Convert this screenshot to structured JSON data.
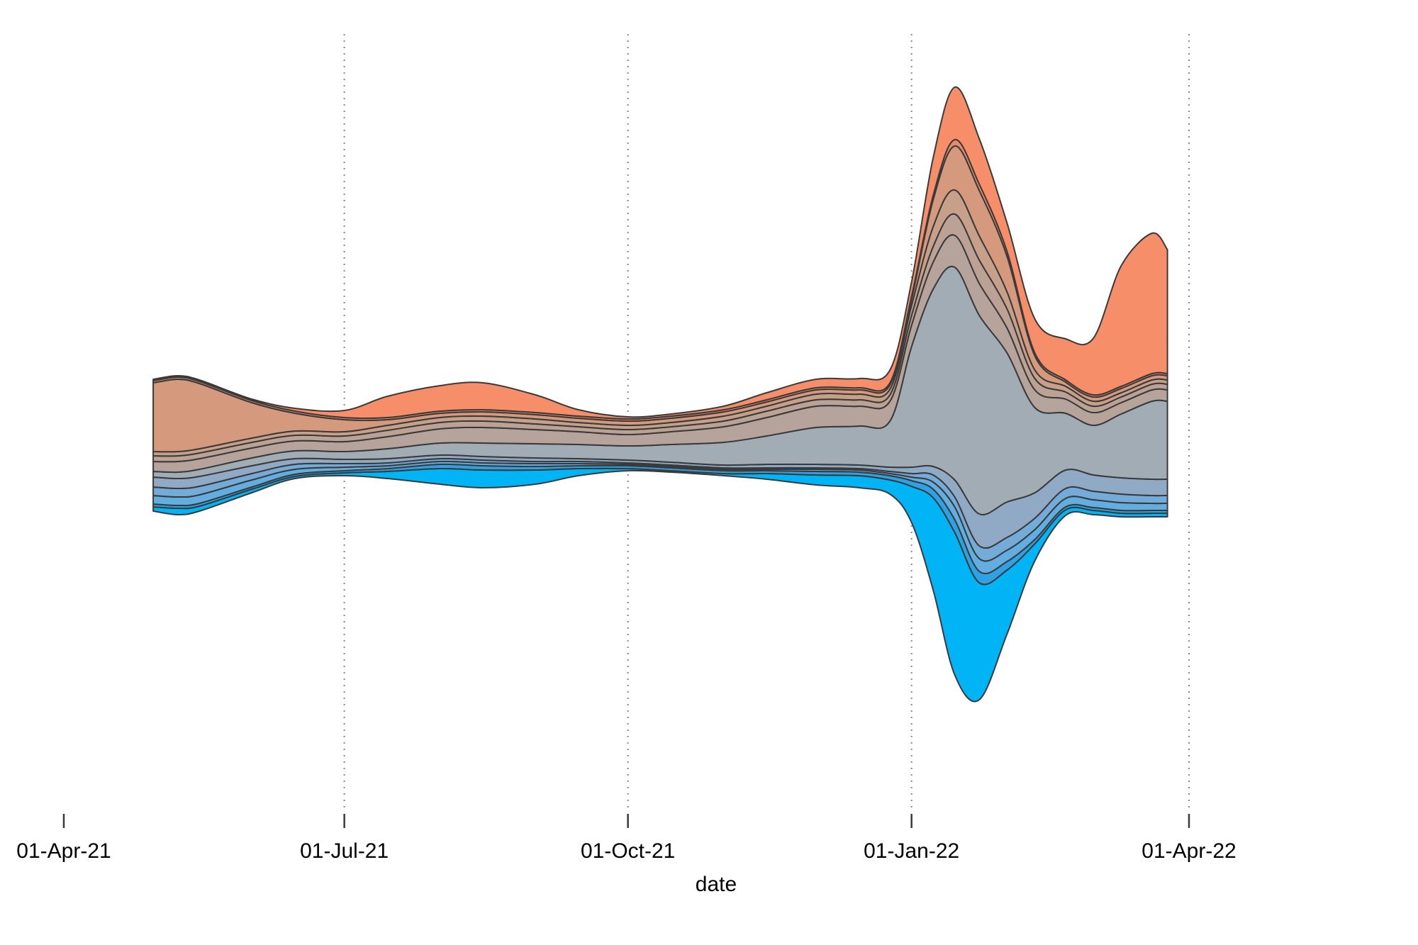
{
  "chart_data": {
    "type": "area",
    "subtype": "streamgraph",
    "title": "",
    "xlabel": "date",
    "ylabel": "",
    "x_ticks": [
      "01-Apr-21",
      "01-Jul-21",
      "01-Oct-21",
      "01-Jan-22",
      "01-Apr-22"
    ],
    "x_tick_dates": [
      "2021-04-01",
      "2021-07-01",
      "2021-10-01",
      "2022-01-01",
      "2022-04-01"
    ],
    "x_range": [
      "2021-04-01",
      "2022-04-01"
    ],
    "y_axis_visible": false,
    "grid": "vertical dotted at x ticks",
    "legend": "none",
    "x": [
      "2021-04-30",
      "2021-05-08",
      "2021-05-15",
      "2021-06-01",
      "2021-06-15",
      "2021-07-01",
      "2021-07-15",
      "2021-08-01",
      "2021-08-15",
      "2021-09-01",
      "2021-09-15",
      "2021-10-01",
      "2021-10-15",
      "2021-11-01",
      "2021-11-15",
      "2021-12-01",
      "2021-12-15",
      "2021-12-25",
      "2022-01-01",
      "2022-01-08",
      "2022-01-15",
      "2022-01-23",
      "2022-02-01",
      "2022-02-10",
      "2022-02-20",
      "2022-03-01",
      "2022-03-10",
      "2022-03-20",
      "2022-03-25"
    ],
    "baseline": [
      -74,
      -79,
      -74,
      -48,
      -28,
      -24,
      -28,
      -36,
      -41,
      -36,
      -24,
      -17,
      -19,
      -24,
      -29,
      -37,
      -41,
      -50,
      -90,
      -185,
      -305,
      -340,
      -247,
      -144,
      -80,
      -79,
      -82,
      -82,
      -82
    ],
    "layers": [
      {
        "color": "#00b4f5",
        "values": [
          6,
          9,
          7,
          5,
          3,
          4,
          10,
          22,
          25,
          20,
          10,
          3,
          2,
          3,
          8,
          14,
          17,
          20,
          51,
          130,
          201,
          165,
          90,
          24,
          8,
          6,
          5,
          5,
          5
        ]
      },
      {
        "color": "#2ea2e5",
        "values": [
          4,
          4,
          4,
          3,
          3,
          3,
          4,
          6,
          6,
          5,
          4,
          4,
          4,
          4,
          4,
          5,
          5,
          6,
          8,
          12,
          18,
          16,
          12,
          6,
          4,
          4,
          4,
          4,
          4
        ]
      },
      {
        "color": "#63aee0",
        "values": [
          12,
          12,
          12,
          10,
          7,
          5,
          4,
          4,
          4,
          4,
          3,
          2,
          2,
          2,
          2,
          3,
          3,
          3,
          5,
          10,
          18,
          18,
          16,
          14,
          12,
          11,
          11,
          10,
          10
        ]
      },
      {
        "color": "#74acd9",
        "values": [
          12,
          12,
          12,
          9,
          7,
          5,
          4,
          4,
          4,
          3,
          3,
          2,
          2,
          2,
          2,
          2,
          2,
          3,
          5,
          10,
          14,
          18,
          18,
          16,
          14,
          12,
          12,
          11,
          11
        ]
      },
      {
        "color": "#90a9c4",
        "values": [
          14,
          14,
          14,
          11,
          8,
          6,
          6,
          5,
          5,
          5,
          4,
          4,
          4,
          4,
          5,
          5,
          5,
          6,
          9,
          12,
          24,
          45,
          50,
          36,
          26,
          23,
          23,
          23,
          23
        ]
      },
      {
        "color": "#a2acb5",
        "values": [
          8,
          9,
          10,
          11,
          11,
          11,
          14,
          17,
          19,
          20,
          20,
          20,
          25,
          32,
          40,
          52,
          55,
          65,
          170,
          250,
          300,
          280,
          210,
          120,
          80,
          70,
          90,
          110,
          110
        ]
      },
      {
        "color": "#b5a39c",
        "values": [
          14,
          15,
          15,
          14,
          14,
          14,
          17,
          20,
          22,
          20,
          18,
          16,
          18,
          22,
          26,
          30,
          28,
          28,
          30,
          38,
          45,
          45,
          35,
          25,
          20,
          18,
          16,
          16,
          16
        ]
      },
      {
        "color": "#bca295",
        "values": [
          8,
          8,
          8,
          8,
          8,
          8,
          9,
          9,
          9,
          8,
          7,
          7,
          7,
          8,
          9,
          9,
          9,
          9,
          14,
          22,
          30,
          33,
          27,
          16,
          10,
          9,
          8,
          8,
          8
        ]
      },
      {
        "color": "#c7a08a",
        "values": [
          6,
          6,
          6,
          6,
          6,
          6,
          7,
          7,
          7,
          7,
          6,
          6,
          6,
          7,
          7,
          8,
          8,
          8,
          14,
          28,
          34,
          34,
          24,
          12,
          8,
          7,
          6,
          6,
          6
        ]
      },
      {
        "color": "#d59a7d",
        "values": [
          97,
          102,
          92,
          50,
          25,
          17,
          8,
          6,
          6,
          6,
          6,
          6,
          6,
          6,
          6,
          6,
          6,
          6,
          9,
          38,
          62,
          64,
          50,
          20,
          6,
          6,
          6,
          6,
          6
        ]
      },
      {
        "color": "#e48d6b",
        "values": [
          3,
          3,
          3,
          3,
          3,
          3,
          3,
          3,
          3,
          3,
          3,
          3,
          3,
          3,
          3,
          3,
          3,
          3,
          4,
          6,
          9,
          9,
          7,
          4,
          3,
          3,
          3,
          3,
          3
        ]
      },
      {
        "color": "#f68e69",
        "values": [
          2,
          2,
          2,
          2,
          4,
          10,
          30,
          36,
          38,
          25,
          9,
          3,
          3,
          5,
          10,
          12,
          13,
          18,
          20,
          53,
          74,
          64,
          40,
          48,
          58,
          80,
          170,
          198,
          175
        ]
      }
    ]
  }
}
